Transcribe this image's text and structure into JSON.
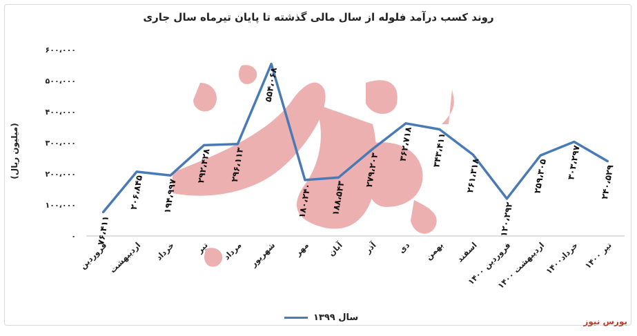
{
  "brand": "بورس نیوز",
  "chart_data": {
    "type": "line",
    "title": "روند کسب درآمد فلوله از سال مالی گذشته تا پایان تیرماه سال جاری",
    "xlabel": "",
    "ylabel": "(میلیون ریال)",
    "ylim": [
      0,
      600000
    ],
    "yticks": [
      "۰",
      "۱۰۰،۰۰۰",
      "۲۰۰،۰۰۰",
      "۳۰۰،۰۰۰",
      "۴۰۰،۰۰۰",
      "۵۰۰،۰۰۰",
      "۶۰۰،۰۰۰"
    ],
    "legend_position": "bottom",
    "grid": false,
    "categories": [
      "فروردین",
      "اردیبهشت",
      "خرداد",
      "تیر",
      "مرداد",
      "شهریور",
      "مهر",
      "آبان",
      "آذر",
      "دی",
      "بهمن",
      "اسفند",
      "فروردین ۱۴۰۰",
      "اردیبهشت ۱۴۰۰",
      "خرداد۱۴۰۰",
      "تیر ۱۴۰۰"
    ],
    "series": [
      {
        "name": "سال ۱۳۹۹",
        "color": "#4a7ab5",
        "values": [
          76411,
          206845,
          194997,
          292428,
          296113,
          554068,
          180240,
          188543,
          279203,
          362718,
          343411,
          261318,
          120292,
          259305,
          303297,
          240529
        ],
        "labels": [
          "۷۶،۴۱۱",
          "۲۰۶،۸۴۵",
          "۱۹۴،۹۹۷",
          "۲۹۲،۴۲۸",
          "۲۹۶،۱۱۳",
          "۵۵۴،۰۶۸",
          "۱۸۰،۲۴۰",
          "۱۸۸،۵۴۳",
          "۲۷۹،۲۰۳",
          "۳۶۲،۷۱۸",
          "۳۴۳،۴۱۱",
          "۲۶۱،۳۱۸",
          "۱۲۰،۲۹۲",
          "۲۵۹،۳۰۵",
          "۳۰۳،۲۹۷",
          "۲۴۰،۵۲۹"
        ]
      }
    ]
  }
}
